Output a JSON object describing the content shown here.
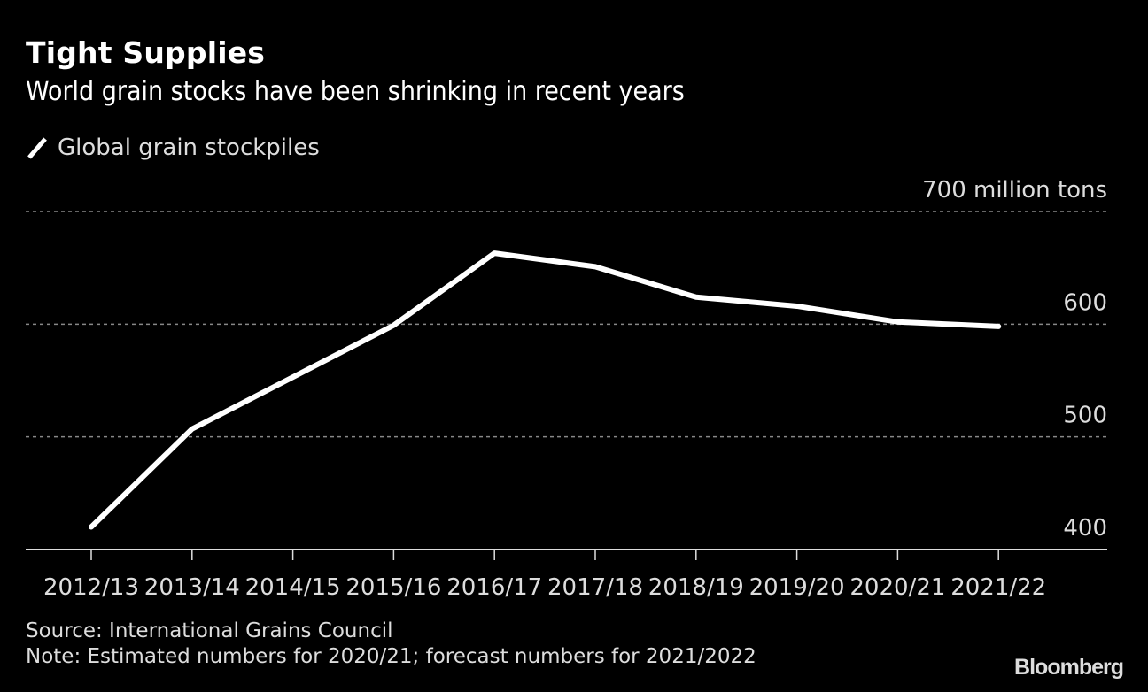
{
  "header": {
    "title": "Tight Supplies",
    "subtitle": "World grain stocks have been shrinking in recent years"
  },
  "legend": {
    "icon": "line-swatch-icon",
    "label": "Global grain stockpiles"
  },
  "footer": {
    "source": "Source: International Grains Council",
    "note": "Note: Estimated numbers for 2020/21; forecast numbers for 2021/2022",
    "brand": "Bloomberg"
  },
  "colors": {
    "background": "#000000",
    "line": "#ffffff",
    "grid": "#888888",
    "axis": "#dddddd",
    "text": "#dddddd"
  },
  "chart_data": {
    "type": "line",
    "title": "Tight Supplies",
    "subtitle": "World grain stocks have been shrinking in recent years",
    "xlabel": "",
    "ylabel": "million tons",
    "categories": [
      "2012/13",
      "2013/14",
      "2014/15",
      "2015/16",
      "2016/17",
      "2017/18",
      "2018/19",
      "2019/20",
      "2020/21",
      "2021/22"
    ],
    "series": [
      {
        "name": "Global grain stockpiles",
        "values": [
          420,
          507,
          553,
          599,
          663,
          651,
          624,
          616,
          602,
          598
        ]
      }
    ],
    "ylim": [
      400,
      700
    ],
    "yticks": [
      400,
      500,
      600,
      700
    ],
    "ytick_labels": [
      "400",
      "500",
      "600",
      "700 million tons"
    ],
    "grid": true,
    "legend_position": "top-left",
    "y_axis_side": "right"
  }
}
